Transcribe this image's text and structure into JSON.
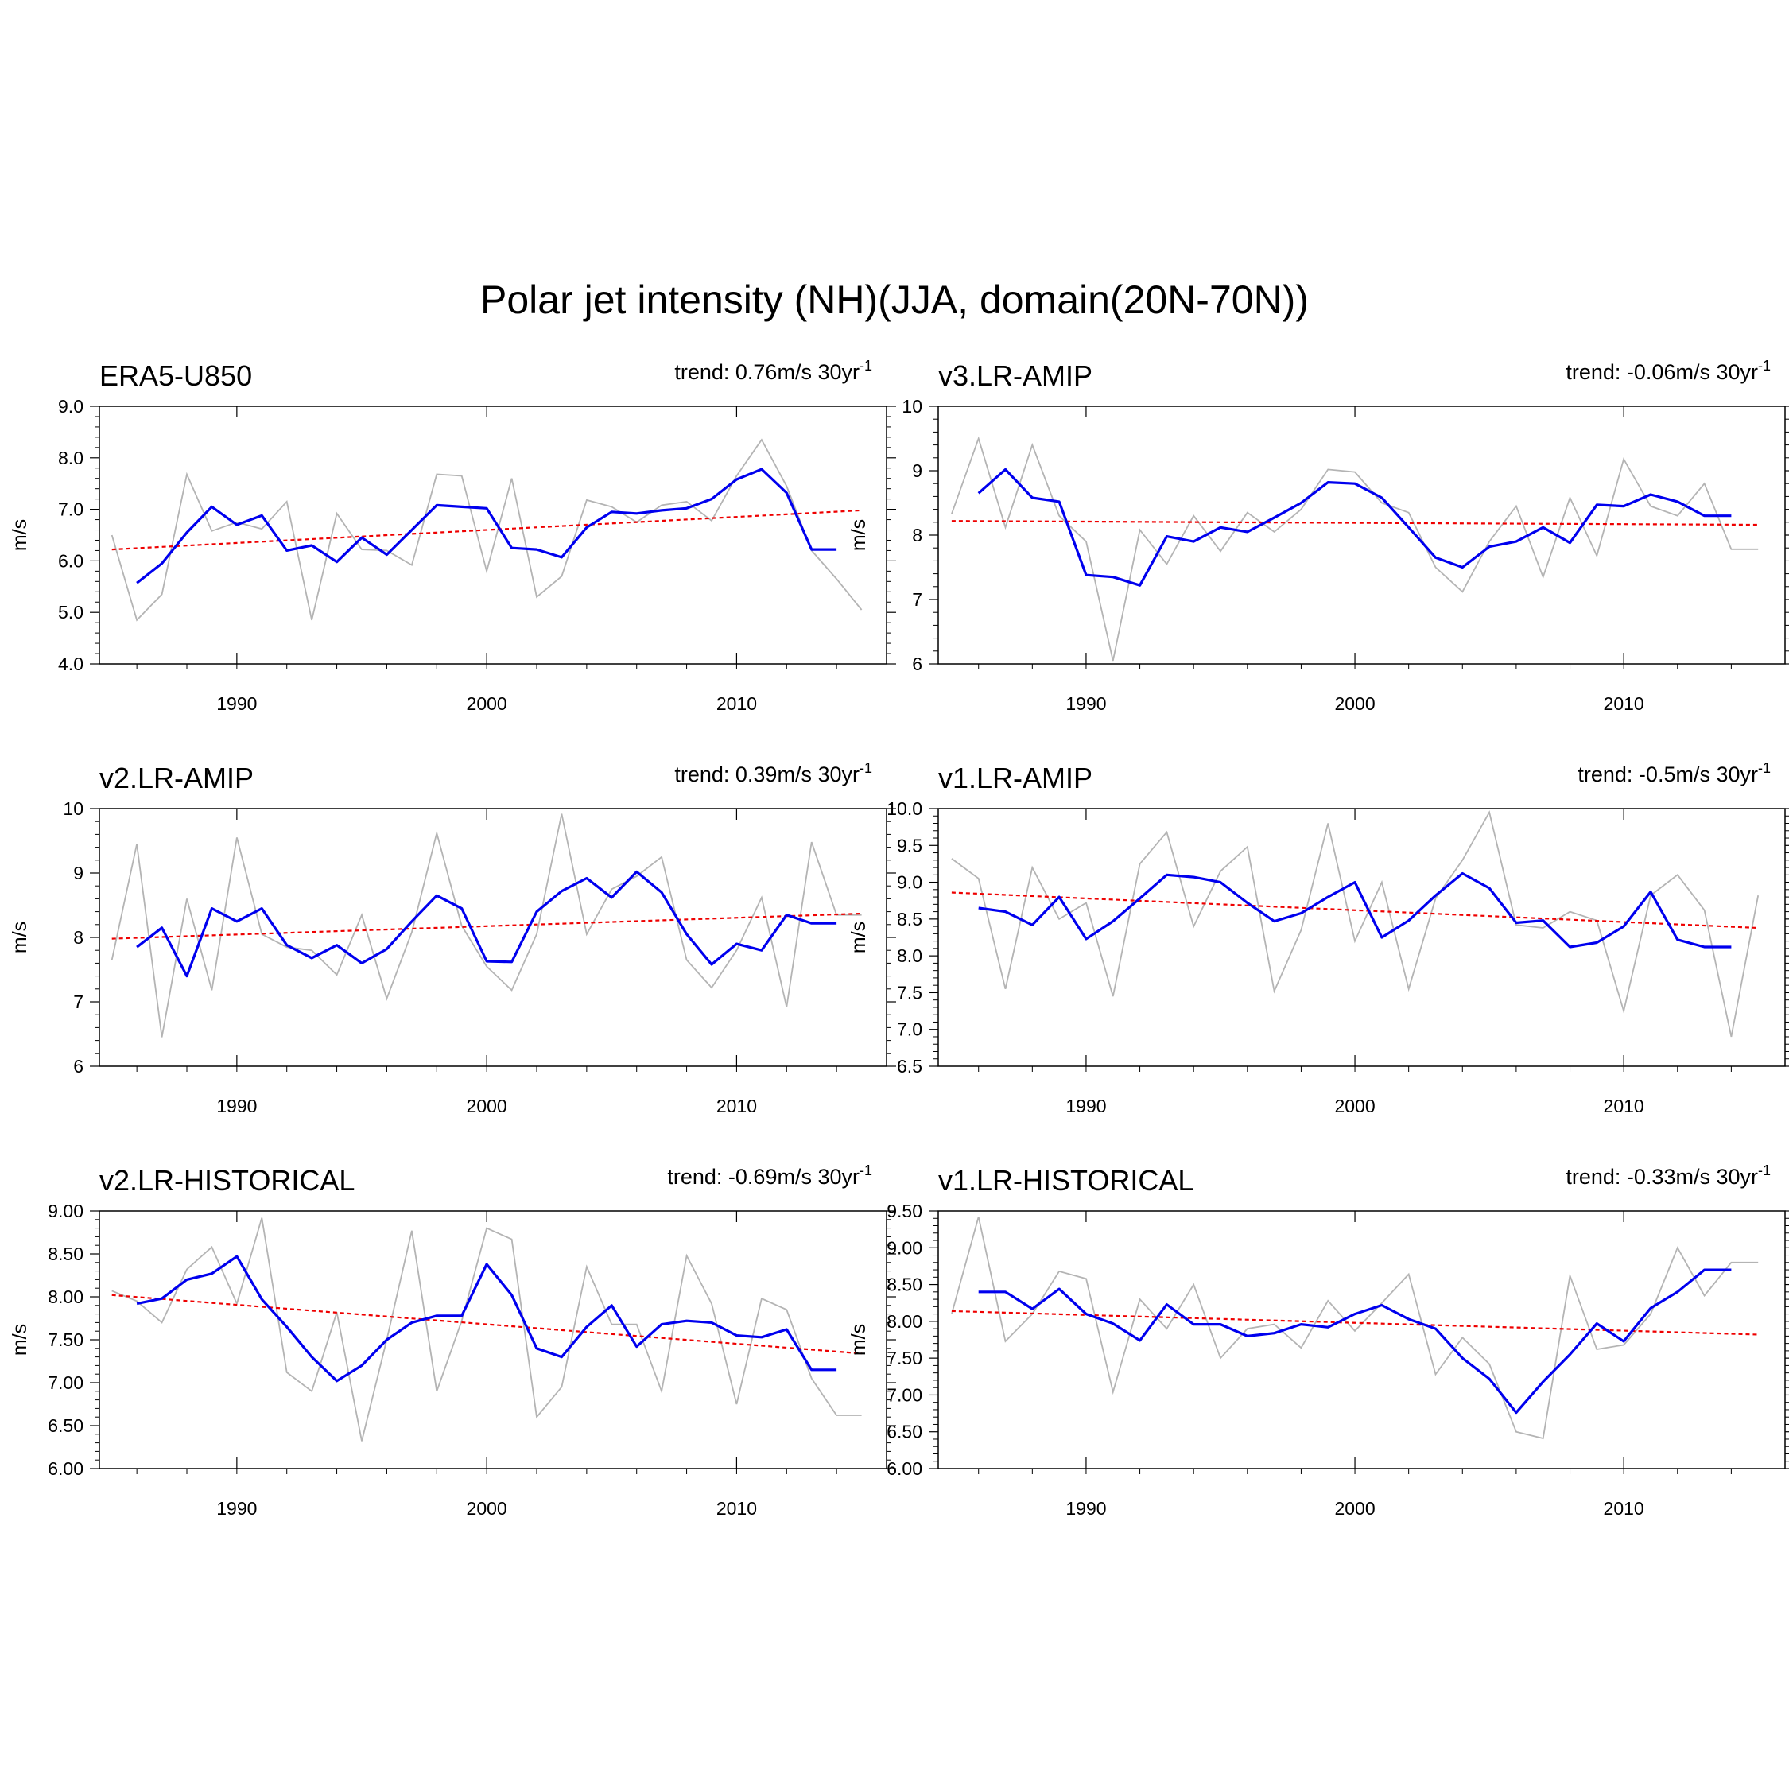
{
  "title": "Polar jet intensity (NH)(JJA, domain(20N-70N))",
  "colors": {
    "raw": "#b4b4b4",
    "smooth": "#0000ee",
    "trend": "#ee0000"
  },
  "chart_data": [
    {
      "type": "line",
      "panel": "ERA5-U850",
      "trend_text": "trend: 0.76m/s 30yr",
      "trend_sup": "-1",
      "ylabel": "m/s",
      "xlim": [
        1984.5,
        2016
      ],
      "ylim": [
        4.0,
        9.0
      ],
      "yticks": [
        "4.0",
        "5.0",
        "6.0",
        "7.0",
        "8.0",
        "9.0"
      ],
      "xticks": [
        "1990",
        "2000",
        "2010"
      ],
      "raw": {
        "x": [
          1985,
          1986,
          1987,
          1988,
          1989,
          1990,
          1991,
          1992,
          1993,
          1994,
          1995,
          1996,
          1997,
          1998,
          1999,
          2000,
          2001,
          2002,
          2003,
          2004,
          2005,
          2006,
          2007,
          2008,
          2009,
          2010,
          2011,
          2012,
          2013,
          2014,
          2015
        ],
        "y": [
          6.5,
          4.85,
          5.35,
          7.68,
          6.58,
          6.75,
          6.62,
          7.15,
          4.85,
          6.92,
          6.22,
          6.2,
          5.92,
          7.68,
          7.65,
          5.8,
          7.6,
          5.3,
          5.7,
          7.18,
          7.05,
          6.75,
          7.08,
          7.15,
          6.78,
          7.65,
          8.35,
          7.45,
          6.2,
          5.65,
          5.05
        ]
      },
      "smooth": {
        "x": [
          1986,
          1987,
          1988,
          1989,
          1990,
          1991,
          1992,
          1993,
          1994,
          1995,
          1996,
          1997,
          1998,
          1999,
          2000,
          2001,
          2002,
          2003,
          2004,
          2005,
          2006,
          2007,
          2008,
          2009,
          2010,
          2011,
          2012,
          2013,
          2014
        ],
        "y": [
          5.57,
          5.95,
          6.55,
          7.05,
          6.7,
          6.88,
          6.2,
          6.3,
          5.98,
          6.45,
          6.12,
          6.6,
          7.08,
          7.05,
          7.02,
          6.25,
          6.22,
          6.07,
          6.65,
          6.95,
          6.92,
          6.98,
          7.02,
          7.2,
          7.58,
          7.78,
          7.32,
          6.22,
          6.22
        ]
      },
      "trend": {
        "x": [
          1985,
          2015
        ],
        "y": [
          6.22,
          6.98
        ]
      }
    },
    {
      "type": "line",
      "panel": "v3.LR-AMIP",
      "trend_text": "trend: -0.06m/s 30yr",
      "trend_sup": "-1",
      "ylabel": "m/s",
      "xlim": [
        1984.5,
        2016
      ],
      "ylim": [
        6,
        10
      ],
      "yticks": [
        "6",
        "7",
        "8",
        "9",
        "10"
      ],
      "xticks": [
        "1990",
        "2000",
        "2010"
      ],
      "raw": {
        "x": [
          1985,
          1986,
          1987,
          1988,
          1989,
          1990,
          1991,
          1992,
          1993,
          1994,
          1995,
          1996,
          1997,
          1998,
          1999,
          2000,
          2001,
          2002,
          2003,
          2004,
          2005,
          2006,
          2007,
          2008,
          2009,
          2010,
          2011,
          2012,
          2013,
          2014,
          2015
        ],
        "y": [
          8.33,
          9.5,
          8.12,
          9.4,
          8.3,
          7.9,
          6.05,
          8.08,
          7.55,
          8.3,
          7.75,
          8.35,
          8.05,
          8.4,
          9.02,
          8.98,
          8.5,
          8.35,
          7.5,
          7.12,
          7.9,
          8.45,
          7.35,
          8.58,
          7.68,
          9.18,
          8.45,
          8.3,
          8.8,
          7.78,
          7.78
        ]
      },
      "smooth": {
        "x": [
          1986,
          1987,
          1988,
          1989,
          1990,
          1991,
          1992,
          1993,
          1994,
          1995,
          1996,
          1997,
          1998,
          1999,
          2000,
          2001,
          2002,
          2003,
          2004,
          2005,
          2006,
          2007,
          2008,
          2009,
          2010,
          2011,
          2012,
          2013,
          2014
        ],
        "y": [
          8.65,
          9.02,
          8.58,
          8.52,
          7.38,
          7.35,
          7.22,
          7.98,
          7.9,
          8.12,
          8.05,
          8.27,
          8.5,
          8.82,
          8.8,
          8.58,
          8.12,
          7.65,
          7.5,
          7.82,
          7.9,
          8.12,
          7.88,
          8.47,
          8.45,
          8.63,
          8.52,
          8.3,
          8.3
        ]
      },
      "trend": {
        "x": [
          1985,
          2015
        ],
        "y": [
          8.22,
          8.16
        ]
      }
    },
    {
      "type": "line",
      "panel": "v2.LR-AMIP",
      "trend_text": "trend: 0.39m/s 30yr",
      "trend_sup": "-1",
      "ylabel": "m/s",
      "xlim": [
        1984.5,
        2016
      ],
      "ylim": [
        6,
        10
      ],
      "yticks": [
        "6",
        "7",
        "8",
        "9",
        "10"
      ],
      "xticks": [
        "1990",
        "2000",
        "2010"
      ],
      "raw": {
        "x": [
          1985,
          1986,
          1987,
          1988,
          1989,
          1990,
          1991,
          1992,
          1993,
          1994,
          1995,
          1996,
          1997,
          1998,
          1999,
          2000,
          2001,
          2002,
          2003,
          2004,
          2005,
          2006,
          2007,
          2008,
          2009,
          2010,
          2011,
          2012,
          2013,
          2014,
          2015
        ],
        "y": [
          7.65,
          9.45,
          6.45,
          8.6,
          7.18,
          9.55,
          8.05,
          7.85,
          7.8,
          7.42,
          8.35,
          7.05,
          8.08,
          9.62,
          8.18,
          7.55,
          7.18,
          8.05,
          9.92,
          8.05,
          8.75,
          8.95,
          9.25,
          7.65,
          7.22,
          7.8,
          8.62,
          6.92,
          9.48,
          8.35,
          8.35
        ]
      },
      "smooth": {
        "x": [
          1986,
          1987,
          1988,
          1989,
          1990,
          1991,
          1992,
          1993,
          1994,
          1995,
          1996,
          1997,
          1998,
          1999,
          2000,
          2001,
          2002,
          2003,
          2004,
          2005,
          2006,
          2007,
          2008,
          2009,
          2010,
          2011,
          2012,
          2013,
          2014
        ],
        "y": [
          7.85,
          8.15,
          7.4,
          8.45,
          8.25,
          8.45,
          7.88,
          7.68,
          7.88,
          7.6,
          7.82,
          8.25,
          8.65,
          8.45,
          7.63,
          7.62,
          8.4,
          8.72,
          8.92,
          8.62,
          9.02,
          8.7,
          8.05,
          7.58,
          7.9,
          7.8,
          8.35,
          8.22,
          8.22
        ]
      },
      "trend": {
        "x": [
          1985,
          2015
        ],
        "y": [
          7.98,
          8.37
        ]
      }
    },
    {
      "type": "line",
      "panel": "v1.LR-AMIP",
      "trend_text": "trend: -0.5m/s 30yr",
      "trend_sup": "-1",
      "ylabel": "m/s",
      "xlim": [
        1984.5,
        2016
      ],
      "ylim": [
        6.5,
        10.0
      ],
      "yticks": [
        "6.5",
        "7.0",
        "7.5",
        "8.0",
        "8.5",
        "9.0",
        "9.5",
        "10.0"
      ],
      "xticks": [
        "1990",
        "2000",
        "2010"
      ],
      "raw": {
        "x": [
          1985,
          1986,
          1987,
          1988,
          1989,
          1990,
          1991,
          1992,
          1993,
          1994,
          1995,
          1996,
          1997,
          1998,
          1999,
          2000,
          2001,
          2002,
          2003,
          2004,
          2005,
          2006,
          2007,
          2008,
          2009,
          2010,
          2011,
          2012,
          2013,
          2014,
          2015
        ],
        "y": [
          9.32,
          9.05,
          7.55,
          9.2,
          8.5,
          8.72,
          7.45,
          9.25,
          9.68,
          8.4,
          9.15,
          9.48,
          7.52,
          8.35,
          9.8,
          8.2,
          9.0,
          7.55,
          8.78,
          9.3,
          9.95,
          8.42,
          8.38,
          8.6,
          8.48,
          7.25,
          8.82,
          9.1,
          8.62,
          6.9,
          8.82
        ]
      },
      "smooth": {
        "x": [
          1986,
          1987,
          1988,
          1989,
          1990,
          1991,
          1992,
          1993,
          1994,
          1995,
          1996,
          1997,
          1998,
          1999,
          2000,
          2001,
          2002,
          2003,
          2004,
          2005,
          2006,
          2007,
          2008,
          2009,
          2010,
          2011,
          2012,
          2013,
          2014
        ],
        "y": [
          8.65,
          8.6,
          8.42,
          8.8,
          8.23,
          8.47,
          8.78,
          9.1,
          9.07,
          9.0,
          8.72,
          8.47,
          8.58,
          8.8,
          9.0,
          8.25,
          8.48,
          8.82,
          9.12,
          8.92,
          8.45,
          8.48,
          8.12,
          8.18,
          8.4,
          8.87,
          8.22,
          8.12,
          8.12
        ]
      },
      "trend": {
        "x": [
          1985,
          2015
        ],
        "y": [
          8.86,
          8.38
        ]
      }
    },
    {
      "type": "line",
      "panel": "v2.LR-HISTORICAL",
      "trend_text": "trend: -0.69m/s 30yr",
      "trend_sup": "-1",
      "ylabel": "m/s",
      "xlim": [
        1984.5,
        2016
      ],
      "ylim": [
        6.0,
        9.0
      ],
      "yticks": [
        "6.00",
        "6.50",
        "7.00",
        "7.50",
        "8.00",
        "8.50",
        "9.00"
      ],
      "xticks": [
        "1990",
        "2000",
        "2010"
      ],
      "raw": {
        "x": [
          1985,
          1986,
          1987,
          1988,
          1989,
          1990,
          1991,
          1992,
          1993,
          1994,
          1995,
          1996,
          1997,
          1998,
          1999,
          2000,
          2001,
          2002,
          2003,
          2004,
          2005,
          2006,
          2007,
          2008,
          2009,
          2010,
          2011,
          2012,
          2013,
          2014,
          2015
        ],
        "y": [
          8.07,
          7.95,
          7.7,
          8.32,
          8.58,
          7.92,
          8.92,
          7.12,
          6.9,
          7.82,
          6.32,
          7.5,
          8.77,
          6.9,
          7.72,
          8.8,
          8.67,
          6.6,
          6.95,
          8.35,
          7.68,
          7.68,
          6.9,
          8.48,
          7.92,
          6.75,
          7.98,
          7.85,
          7.05,
          6.62,
          6.62
        ]
      },
      "smooth": {
        "x": [
          1986,
          1987,
          1988,
          1989,
          1990,
          1991,
          1992,
          1993,
          1994,
          1995,
          1996,
          1997,
          1998,
          1999,
          2000,
          2001,
          2002,
          2003,
          2004,
          2005,
          2006,
          2007,
          2008,
          2009,
          2010,
          2011,
          2012,
          2013,
          2014
        ],
        "y": [
          7.92,
          7.98,
          8.2,
          8.27,
          8.47,
          7.97,
          7.65,
          7.3,
          7.02,
          7.2,
          7.5,
          7.7,
          7.78,
          7.78,
          8.38,
          8.02,
          7.4,
          7.3,
          7.65,
          7.9,
          7.42,
          7.68,
          7.72,
          7.7,
          7.55,
          7.53,
          7.62,
          7.15,
          7.15
        ]
      },
      "trend": {
        "x": [
          1985,
          2015
        ],
        "y": [
          8.02,
          7.34
        ]
      }
    },
    {
      "type": "line",
      "panel": "v1.LR-HISTORICAL",
      "trend_text": "trend: -0.33m/s 30yr",
      "trend_sup": "-1",
      "ylabel": "m/s",
      "xlim": [
        1984.5,
        2016
      ],
      "ylim": [
        6.0,
        9.5
      ],
      "yticks": [
        "6.00",
        "6.50",
        "7.00",
        "7.50",
        "8.00",
        "8.50",
        "9.00",
        "9.50"
      ],
      "xticks": [
        "1990",
        "2000",
        "2010"
      ],
      "raw": {
        "x": [
          1985,
          1986,
          1987,
          1988,
          1989,
          1990,
          1991,
          1992,
          1993,
          1994,
          1995,
          1996,
          1997,
          1998,
          1999,
          2000,
          2001,
          2002,
          2003,
          2004,
          2005,
          2006,
          2007,
          2008,
          2009,
          2010,
          2011,
          2012,
          2013,
          2014,
          2015
        ],
        "y": [
          8.1,
          9.42,
          7.73,
          8.1,
          8.68,
          8.58,
          7.04,
          8.3,
          7.9,
          8.5,
          7.5,
          7.9,
          7.96,
          7.64,
          8.28,
          7.87,
          8.25,
          8.64,
          7.28,
          7.78,
          7.42,
          6.5,
          6.41,
          8.62,
          7.62,
          7.68,
          8.1,
          9.0,
          8.35,
          8.8,
          8.8
        ]
      },
      "smooth": {
        "x": [
          1986,
          1987,
          1988,
          1989,
          1990,
          1991,
          1992,
          1993,
          1994,
          1995,
          1996,
          1997,
          1998,
          1999,
          2000,
          2001,
          2002,
          2003,
          2004,
          2005,
          2006,
          2007,
          2008,
          2009,
          2010,
          2011,
          2012,
          2013,
          2014
        ],
        "y": [
          8.4,
          8.4,
          8.17,
          8.44,
          8.1,
          7.97,
          7.74,
          8.23,
          7.96,
          7.96,
          7.8,
          7.84,
          7.96,
          7.92,
          8.1,
          8.22,
          8.03,
          7.9,
          7.5,
          7.22,
          6.76,
          7.18,
          7.55,
          7.97,
          7.73,
          8.18,
          8.4,
          8.7,
          8.7
        ]
      },
      "trend": {
        "x": [
          1985,
          2015
        ],
        "y": [
          8.14,
          7.82
        ]
      }
    }
  ]
}
